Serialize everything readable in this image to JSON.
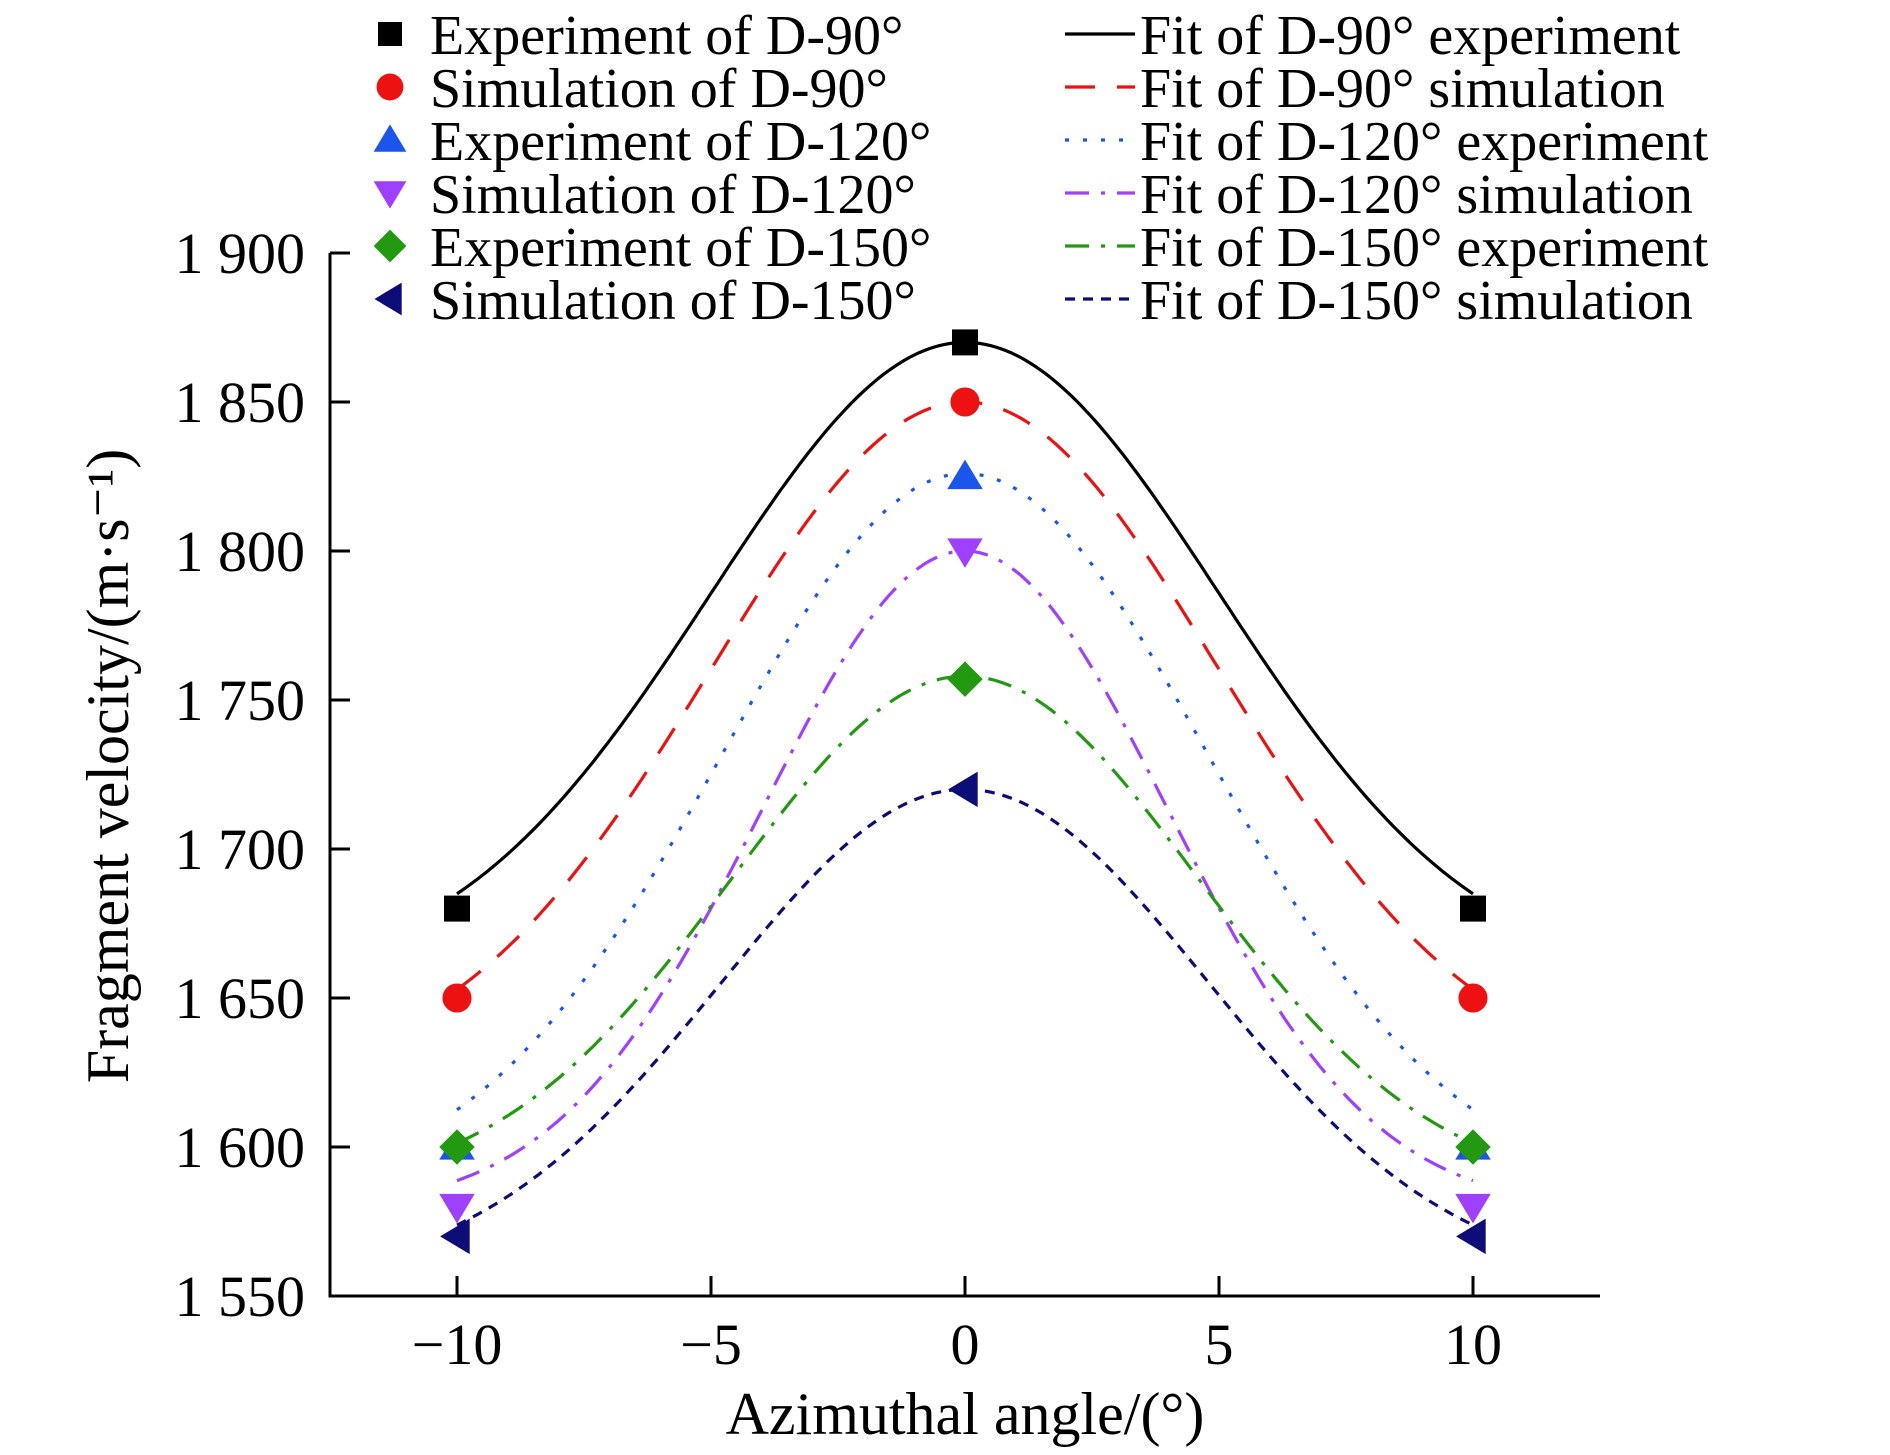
{
  "chart_data": {
    "type": "scatter",
    "xlabel": "Azimuthal angle/(°)",
    "ylabel": "Fragment velocity/(m·s⁻¹)",
    "xlim": [
      -12.5,
      12.5
    ],
    "ylim": [
      1550,
      1900
    ],
    "xticks": [
      -10,
      -5,
      0,
      5,
      10
    ],
    "xtick_labels": [
      "−10",
      "−5",
      "0",
      "5",
      "10"
    ],
    "yticks": [
      1550,
      1600,
      1650,
      1700,
      1750,
      1800,
      1850,
      1900
    ],
    "ytick_labels": [
      "1 550",
      "1 600",
      "1 650",
      "1 700",
      "1 750",
      "1 800",
      "1 850",
      "1 900"
    ],
    "grid": false,
    "legend_position": "top",
    "series": [
      {
        "name": "Experiment of D-90°",
        "marker": "square",
        "color": "#000000",
        "x": [
          -10,
          0,
          10
        ],
        "y": [
          1680,
          1870,
          1680
        ]
      },
      {
        "name": "Simulation of D-90°",
        "marker": "circle",
        "color": "#ee1111",
        "x": [
          -10,
          0,
          10
        ],
        "y": [
          1650,
          1850,
          1650
        ]
      },
      {
        "name": "Experiment of D-120°",
        "marker": "triangle-up",
        "color": "#1a55ee",
        "x": [
          -10,
          0,
          10
        ],
        "y": [
          1600,
          1825,
          1600
        ]
      },
      {
        "name": "Simulation of D-120°",
        "marker": "triangle-down",
        "color": "#a040ff",
        "x": [
          -10,
          0,
          10
        ],
        "y": [
          1580,
          1800,
          1580
        ]
      },
      {
        "name": "Experiment of D-150°",
        "marker": "diamond",
        "color": "#229911",
        "x": [
          -10,
          0,
          10
        ],
        "y": [
          1600,
          1757,
          1600
        ]
      },
      {
        "name": "Simulation of D-150°",
        "marker": "triangle-left",
        "color": "#0d0d7a",
        "x": [
          -10,
          0,
          10
        ],
        "y": [
          1570,
          1720,
          1570
        ]
      }
    ],
    "fits": [
      {
        "name": "Fit of D-90° experiment",
        "color": "#000000",
        "dash": "solid",
        "baseline": 1656,
        "peak": 1870,
        "width": 5.0
      },
      {
        "name": "Fit of D-90° simulation",
        "color": "#ee1111",
        "dash": "dash",
        "baseline": 1622,
        "peak": 1850,
        "width": 5.0
      },
      {
        "name": "Fit of D-120° experiment",
        "color": "#1a55ee",
        "dash": "dot",
        "baseline": 1585,
        "peak": 1826,
        "width": 4.8
      },
      {
        "name": "Fit of D-120° simulation",
        "color": "#a040ff",
        "dash": "dashdot",
        "baseline": 1579,
        "peak": 1800,
        "width": 4.0
      },
      {
        "name": "Fit of D-150° experiment",
        "color": "#229911",
        "dash": "dashdot",
        "baseline": 1585,
        "peak": 1758,
        "width": 4.6
      },
      {
        "name": "Fit of D-150° simulation",
        "color": "#0d0d7a",
        "dash": "shortdash",
        "baseline": 1555,
        "peak": 1720,
        "width": 4.8
      }
    ]
  }
}
